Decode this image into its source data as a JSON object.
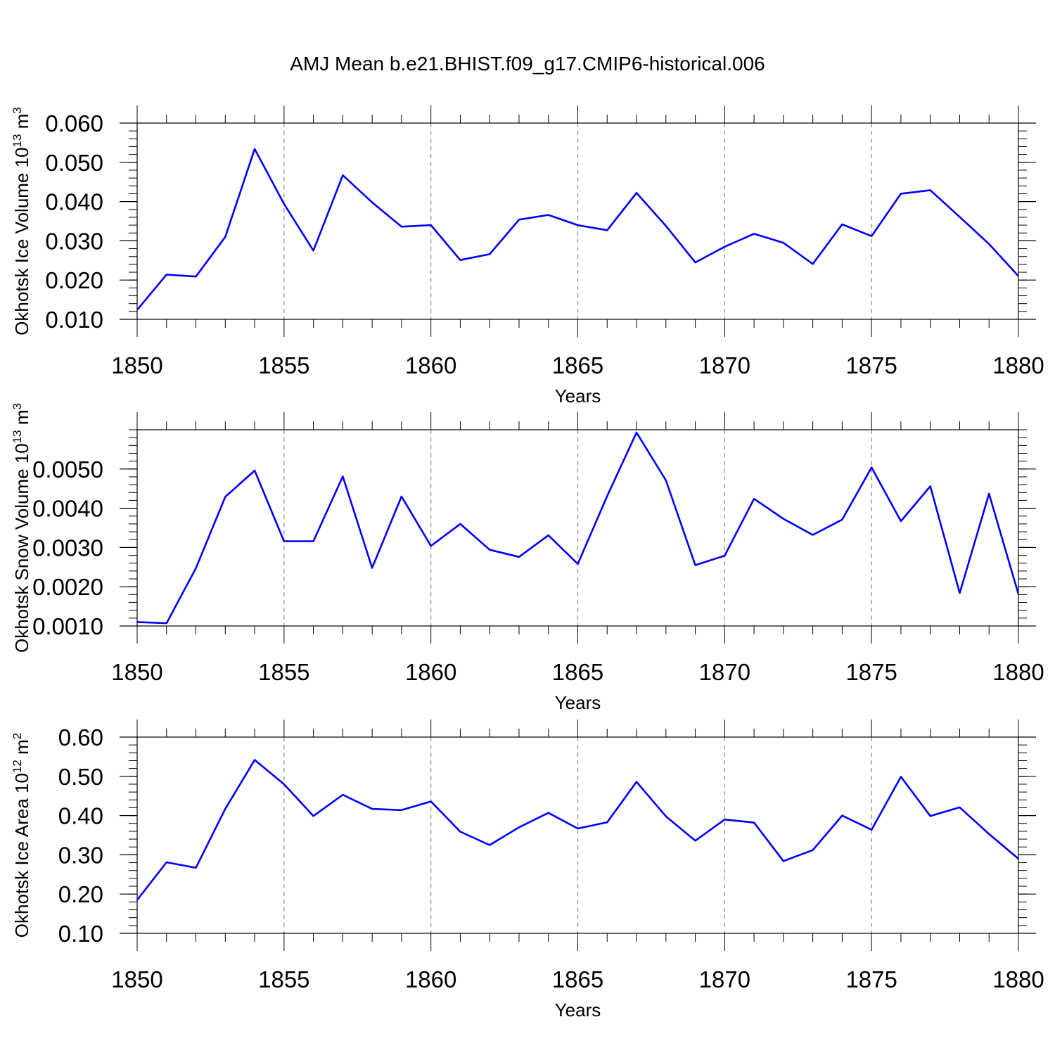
{
  "title": "AMJ Mean b.e21.BHIST.f09_g17.CMIP6-historical.006",
  "colors": {
    "line": "#0000ff",
    "frame": "#000000",
    "grid": "#8c8c8c",
    "background": "#ffffff"
  },
  "chart_data": [
    {
      "type": "line",
      "xlabel": "Years",
      "ylabel": "Okhotsk Ice Volume",
      "yunit_base": "10",
      "yunit_exp": "13",
      "yunit_suffix": "m",
      "yunit_suffix_exp": "3",
      "xlim": [
        1850,
        1880
      ],
      "ylim": [
        0.01,
        0.06
      ],
      "xticks": [
        1850,
        1855,
        1860,
        1865,
        1870,
        1875,
        1880
      ],
      "xtick_labels": [
        "1850",
        "1855",
        "1860",
        "1865",
        "1870",
        "1875",
        "1880"
      ],
      "yticks": [
        0.01,
        0.02,
        0.03,
        0.04,
        0.05,
        0.06
      ],
      "ytick_labels": [
        "0.010",
        "0.020",
        "0.030",
        "0.040",
        "0.050",
        "0.060"
      ],
      "grid": "vertical dashed at major x ticks",
      "x": [
        1850,
        1851,
        1852,
        1853,
        1854,
        1855,
        1856,
        1857,
        1858,
        1859,
        1860,
        1861,
        1862,
        1863,
        1864,
        1865,
        1866,
        1867,
        1868,
        1869,
        1870,
        1871,
        1872,
        1873,
        1874,
        1875,
        1876,
        1877,
        1878,
        1879,
        1880
      ],
      "y": [
        0.0124,
        0.0214,
        0.0209,
        0.031,
        0.0534,
        0.0394,
        0.0275,
        0.0467,
        0.0398,
        0.0336,
        0.034,
        0.0251,
        0.0266,
        0.0354,
        0.0366,
        0.034,
        0.0327,
        0.0422,
        0.0338,
        0.0245,
        0.0285,
        0.0318,
        0.0295,
        0.0241,
        0.0342,
        0.0312,
        0.042,
        0.0429,
        0.0361,
        0.0292,
        0.021
      ]
    },
    {
      "type": "line",
      "xlabel": "Years",
      "ylabel": "Okhotsk Snow Volume",
      "yunit_base": "10",
      "yunit_exp": "13",
      "yunit_suffix": "m",
      "yunit_suffix_exp": "3",
      "xlim": [
        1850,
        1880
      ],
      "ylim": [
        0.001,
        0.006
      ],
      "xticks": [
        1850,
        1855,
        1860,
        1865,
        1870,
        1875,
        1880
      ],
      "xtick_labels": [
        "1850",
        "1855",
        "1860",
        "1865",
        "1870",
        "1875",
        "1880"
      ],
      "yticks": [
        0.001,
        0.002,
        0.003,
        0.004,
        0.005
      ],
      "ytick_labels": [
        "0.0010",
        "0.0020",
        "0.0030",
        "0.0040",
        "0.0050"
      ],
      "grid": "vertical dashed at major x ticks",
      "x": [
        1850,
        1851,
        1852,
        1853,
        1854,
        1855,
        1856,
        1857,
        1858,
        1859,
        1860,
        1861,
        1862,
        1863,
        1864,
        1865,
        1866,
        1867,
        1868,
        1869,
        1870,
        1871,
        1872,
        1873,
        1874,
        1875,
        1876,
        1877,
        1878,
        1879,
        1880
      ],
      "y": [
        0.0011,
        0.00107,
        0.00247,
        0.00429,
        0.00496,
        0.00316,
        0.00316,
        0.00481,
        0.00248,
        0.0043,
        0.00304,
        0.0036,
        0.00294,
        0.00276,
        0.00331,
        0.00258,
        0.00431,
        0.00593,
        0.00471,
        0.00255,
        0.00279,
        0.00424,
        0.00373,
        0.00332,
        0.00371,
        0.00504,
        0.00367,
        0.00456,
        0.00184,
        0.00437,
        0.00181
      ]
    },
    {
      "type": "line",
      "xlabel": "Years",
      "ylabel": "Okhotsk Ice Area",
      "yunit_base": "10",
      "yunit_exp": "12",
      "yunit_suffix": "m",
      "yunit_suffix_exp": "2",
      "xlim": [
        1850,
        1880
      ],
      "ylim": [
        0.1,
        0.6
      ],
      "xticks": [
        1850,
        1855,
        1860,
        1865,
        1870,
        1875,
        1880
      ],
      "xtick_labels": [
        "1850",
        "1855",
        "1860",
        "1865",
        "1870",
        "1875",
        "1880"
      ],
      "yticks": [
        0.1,
        0.2,
        0.3,
        0.4,
        0.5,
        0.6
      ],
      "ytick_labels": [
        "0.10",
        "0.20",
        "0.30",
        "0.40",
        "0.50",
        "0.60"
      ],
      "grid": "vertical dashed at major x ticks",
      "x": [
        1850,
        1851,
        1852,
        1853,
        1854,
        1855,
        1856,
        1857,
        1858,
        1859,
        1860,
        1861,
        1862,
        1863,
        1864,
        1865,
        1866,
        1867,
        1868,
        1869,
        1870,
        1871,
        1872,
        1873,
        1874,
        1875,
        1876,
        1877,
        1878,
        1879,
        1880
      ],
      "y": [
        0.185,
        0.281,
        0.267,
        0.417,
        0.542,
        0.48,
        0.399,
        0.453,
        0.417,
        0.414,
        0.436,
        0.359,
        0.325,
        0.37,
        0.407,
        0.367,
        0.383,
        0.486,
        0.398,
        0.336,
        0.39,
        0.382,
        0.284,
        0.312,
        0.4,
        0.364,
        0.499,
        0.399,
        0.421,
        0.353,
        0.29
      ]
    }
  ]
}
